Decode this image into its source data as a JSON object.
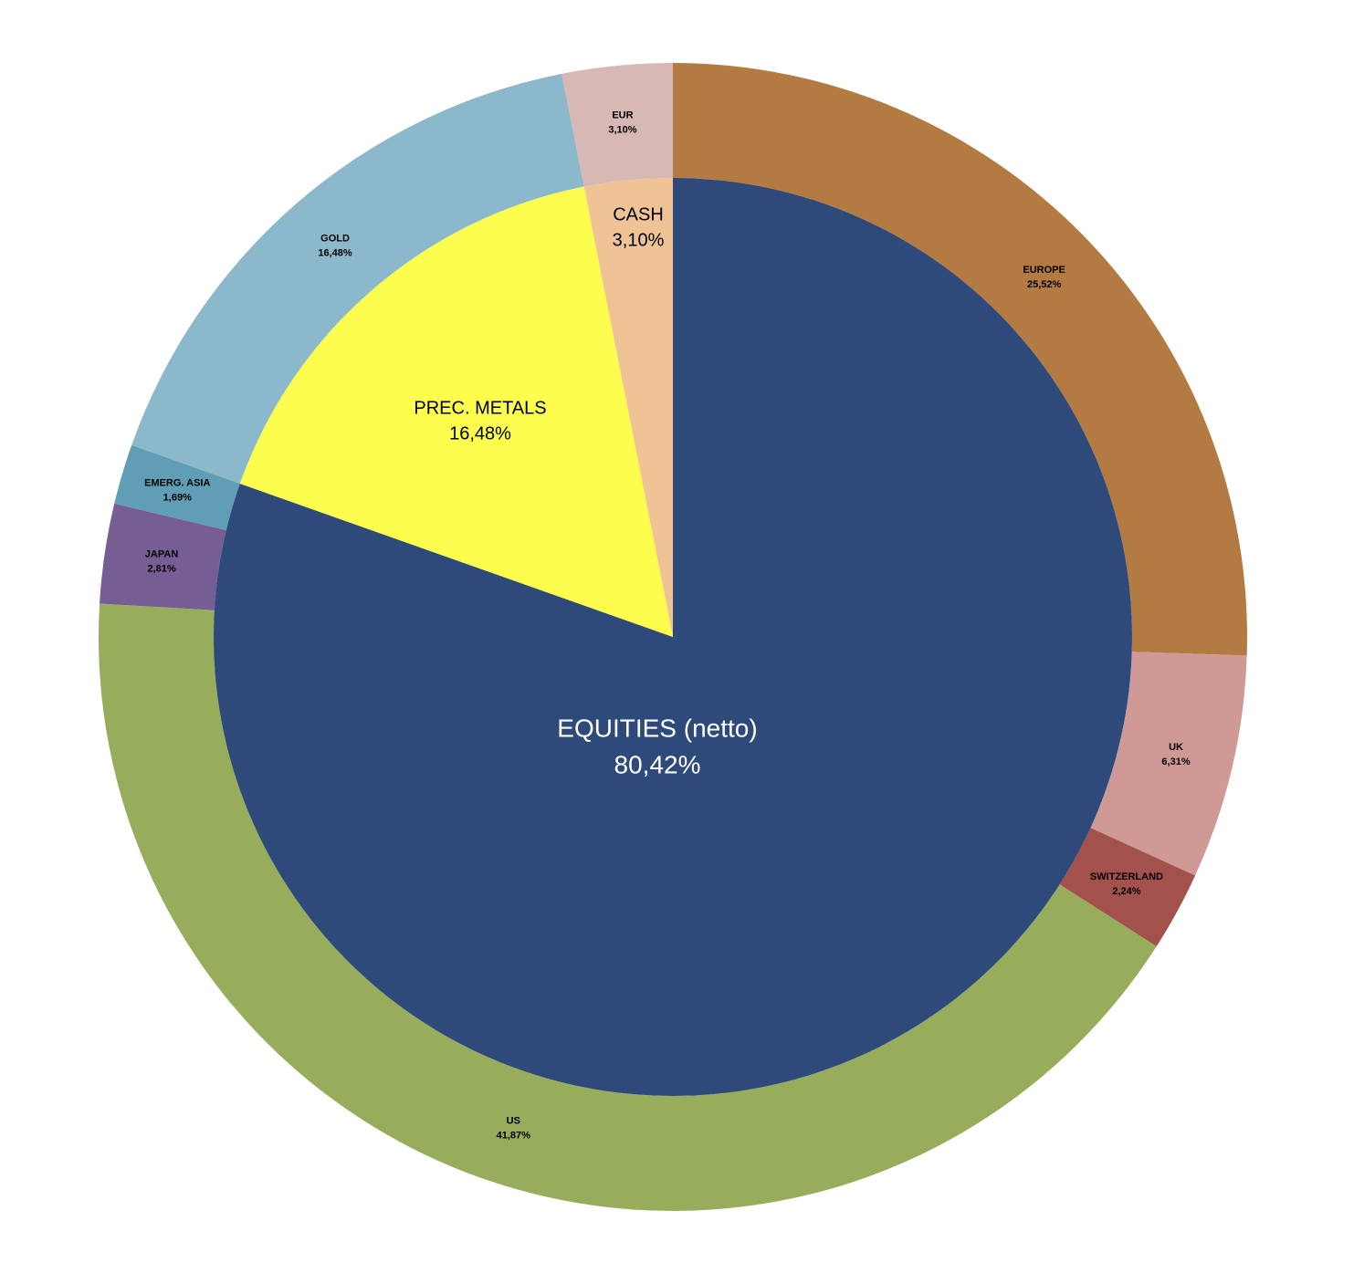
{
  "chart_data": [
    {
      "type": "pie",
      "categories": [
        "EQUITIES (netto)",
        "PREC. METALS",
        "CASH"
      ],
      "values": [
        80.42,
        16.48,
        3.1
      ],
      "value_labels": [
        "80,42%",
        "16,48%",
        "3,10%"
      ],
      "colors": [
        "#2e4a7b",
        "#fdfd4d",
        "#efc396"
      ]
    },
    {
      "type": "donut",
      "categories": [
        "EUROPE",
        "UK",
        "SWITZERLAND",
        "US",
        "JAPAN",
        "EMERG. ASIA",
        "GOLD",
        "EUR"
      ],
      "values": [
        25.52,
        6.31,
        2.24,
        41.87,
        2.81,
        1.69,
        16.48,
        3.1
      ],
      "value_labels": [
        "25,52%",
        "6,31%",
        "2,24%",
        "41,87%",
        "2,81%",
        "1,69%",
        "16,48%",
        "3,10%"
      ],
      "colors": [
        "#b37a41",
        "#cf9996",
        "#a3514c",
        "#98ad5c",
        "#765e94",
        "#5f9eb5",
        "#8cb8cb",
        "#d7b8b5"
      ]
    }
  ]
}
